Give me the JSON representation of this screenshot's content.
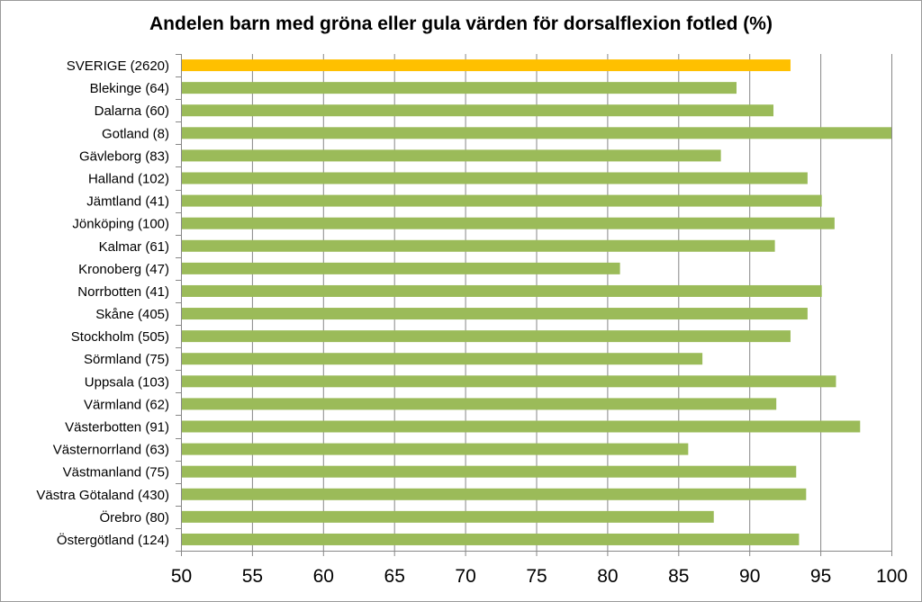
{
  "chart_data": {
    "type": "bar",
    "orientation": "horizontal",
    "title": "Andelen barn med gröna eller gula värden för dorsalflexion fotled (%)",
    "categories": [
      "SVERIGE (2620)",
      "Blekinge (64)",
      "Dalarna (60)",
      "Gotland (8)",
      "Gävleborg (83)",
      "Halland (102)",
      "Jämtland (41)",
      "Jönköping (100)",
      "Kalmar (61)",
      "Kronoberg (47)",
      "Norrbotten (41)",
      "Skåne (405)",
      "Stockholm (505)",
      "Sörmland (75)",
      "Uppsala (103)",
      "Värmland (62)",
      "Västerbotten (91)",
      "Västernorrland (63)",
      "Västmanland (75)",
      "Västra Götaland (430)",
      "Örebro (80)",
      "Östergötland (124)"
    ],
    "values": [
      92.9,
      89.1,
      91.7,
      100.0,
      88.0,
      94.1,
      95.1,
      96.0,
      91.8,
      80.9,
      95.1,
      94.1,
      92.9,
      86.7,
      96.1,
      91.9,
      97.8,
      85.7,
      93.3,
      94.0,
      87.5,
      93.5
    ],
    "highlight_index": 0,
    "xlim": [
      50,
      100
    ],
    "x_ticks": [
      50,
      55,
      60,
      65,
      70,
      75,
      80,
      85,
      90,
      95,
      100
    ],
    "grid": "vertical",
    "legend": "none",
    "colors": {
      "bar": "#9bbb59",
      "highlight": "#ffc000",
      "grid": "#878787",
      "axis": "#878787"
    }
  }
}
